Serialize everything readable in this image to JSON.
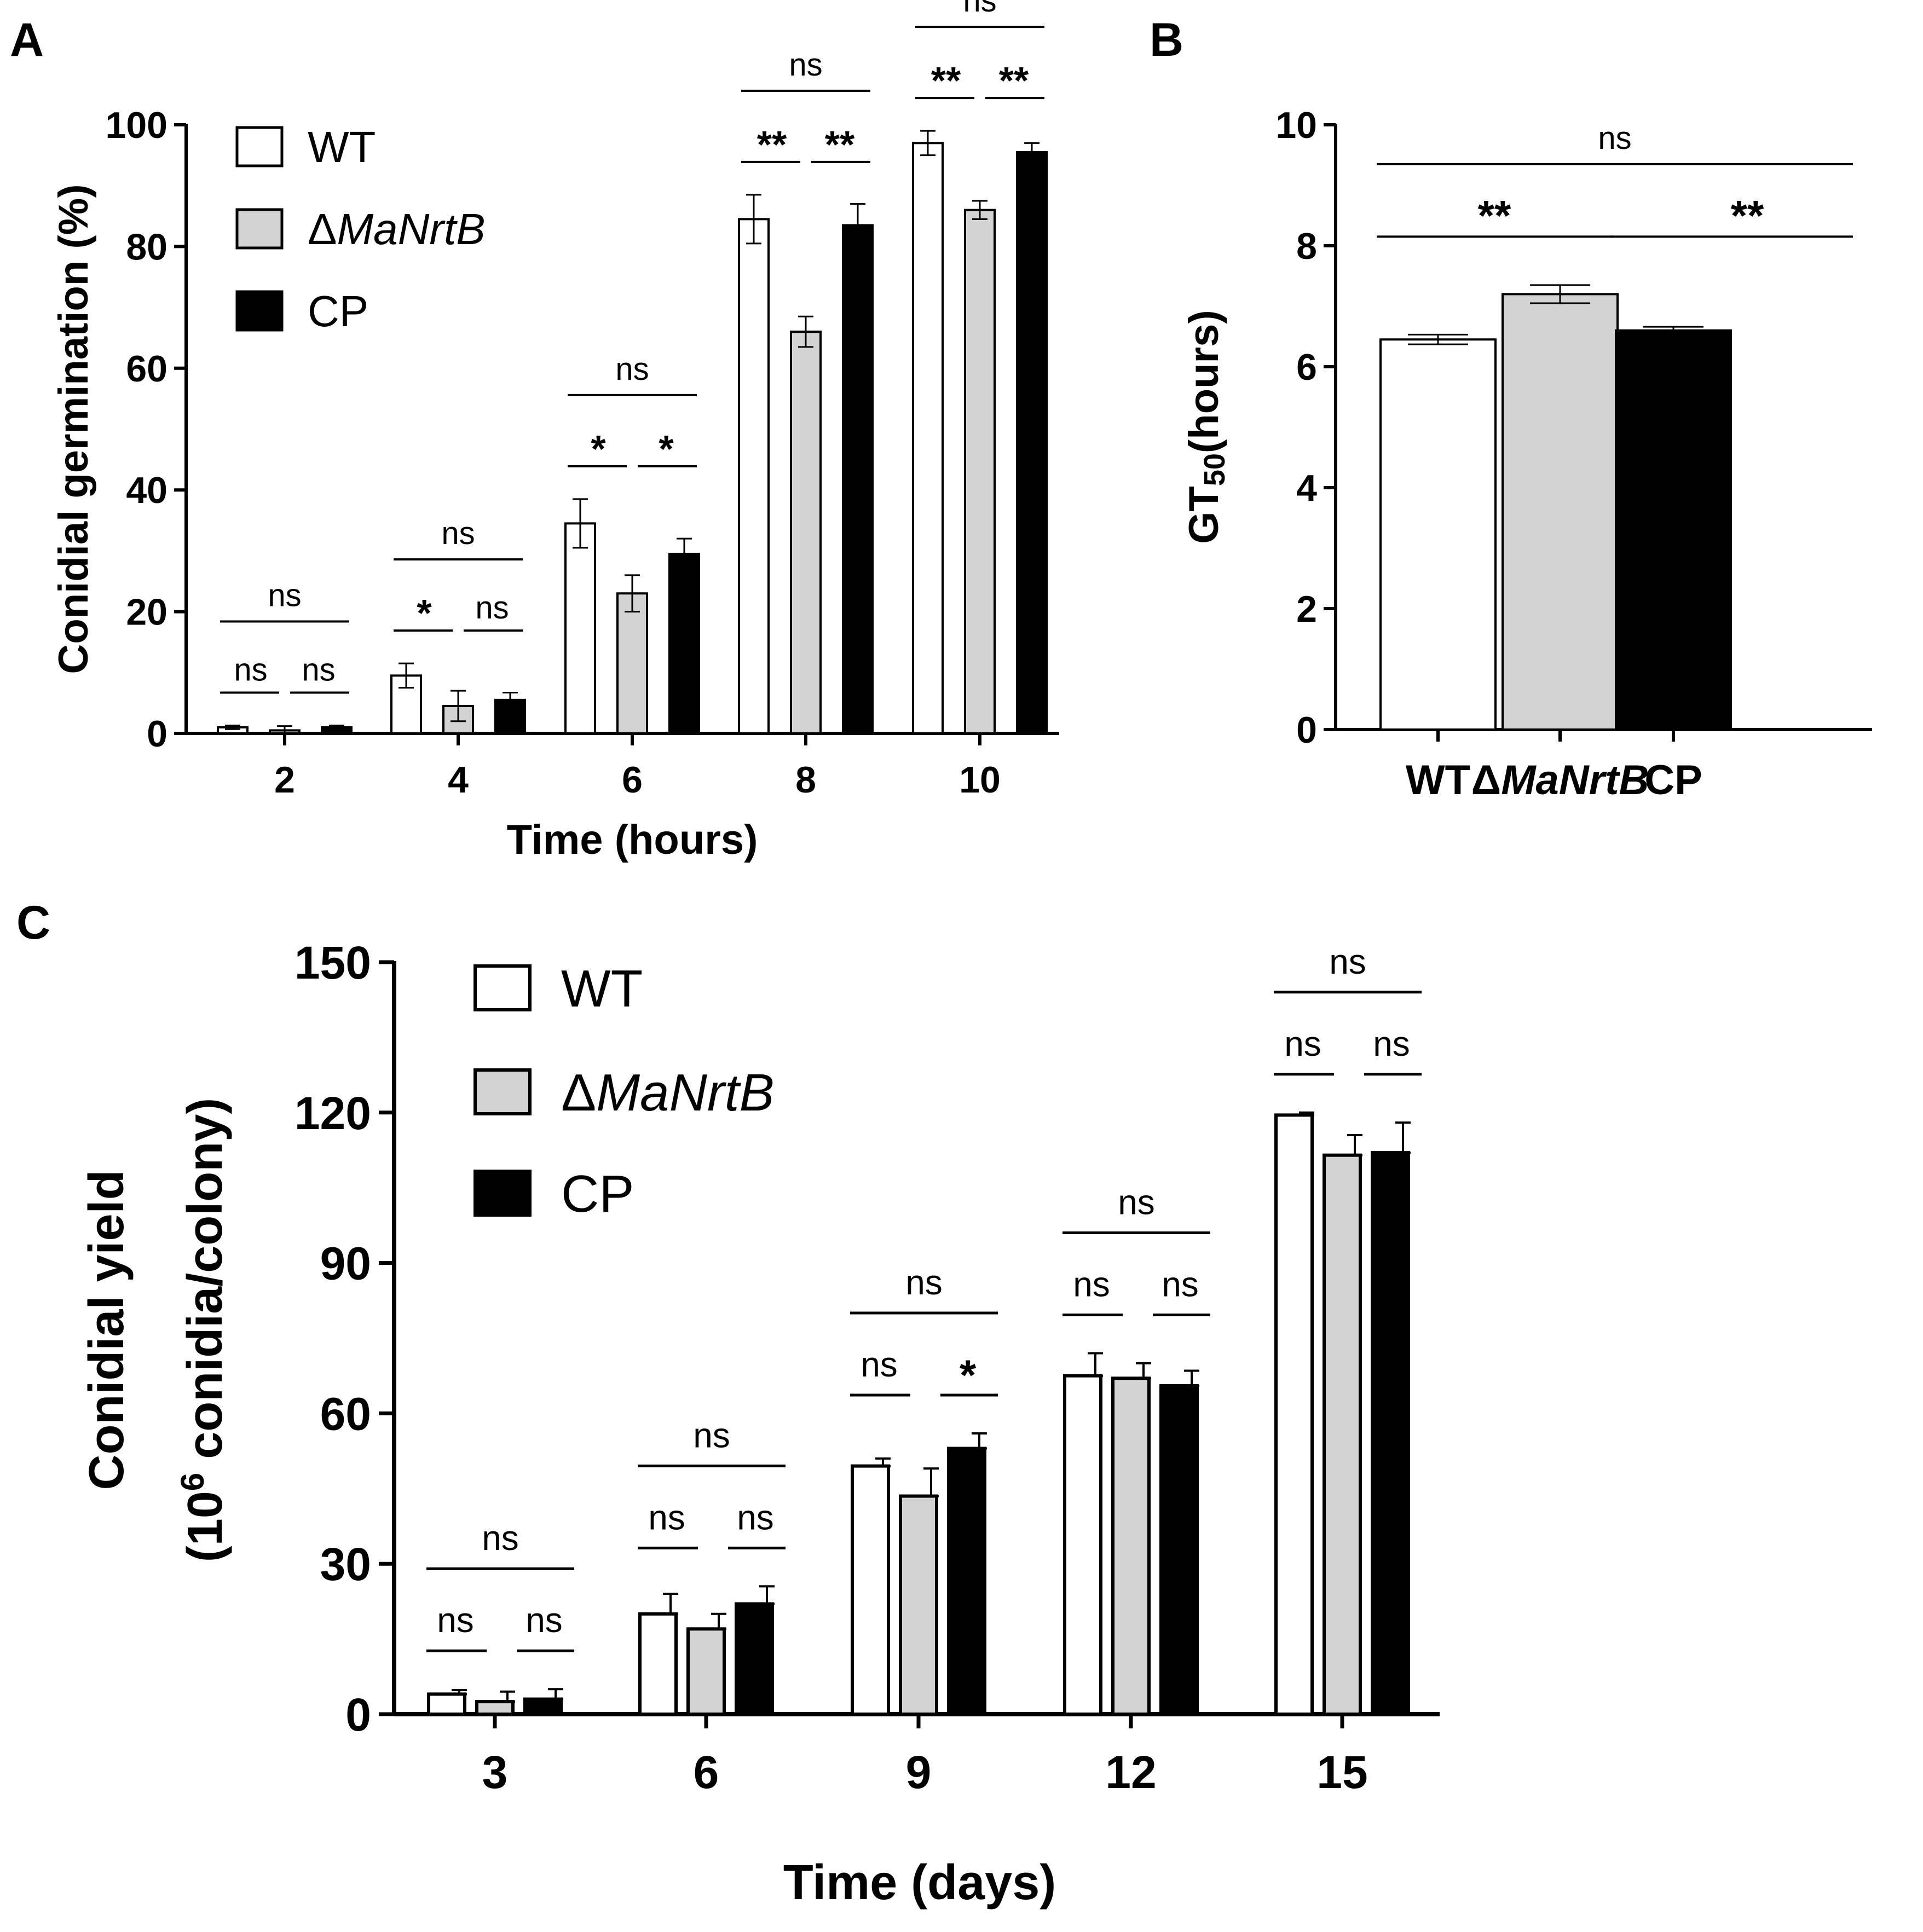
{
  "figure": {
    "panel_labels": [
      "A",
      "B",
      "C"
    ],
    "colors": {
      "WT": "#ffffff",
      "MaNrtB": "#d3d3d3",
      "CP": "#000000",
      "stroke": "#000000"
    }
  },
  "chart_data": [
    {
      "id": "A",
      "type": "bar",
      "title": "",
      "xlabel": "Time (hours)",
      "ylabel": "Conidial germination (%)",
      "ylim": [
        0,
        100
      ],
      "yticks": [
        "0",
        "20",
        "40",
        "60",
        "80",
        "100"
      ],
      "categories": [
        "2",
        "4",
        "6",
        "8",
        "10"
      ],
      "legend": {
        "position": "top-left",
        "entries": [
          {
            "name": "WT",
            "italic": ""
          },
          {
            "name": "Δ",
            "italic": "MaNrtB"
          },
          {
            "name": "CP",
            "italic": ""
          }
        ]
      },
      "series": [
        {
          "name": "WT",
          "values": [
            1,
            9.5,
            34.5,
            84.5,
            97
          ],
          "errors": [
            0.3,
            2,
            4,
            4,
            2
          ]
        },
        {
          "name": "ΔMaNrtB",
          "values": [
            0.5,
            4.5,
            23,
            66,
            86
          ],
          "errors": [
            0.7,
            2.5,
            3,
            2.5,
            1.5
          ]
        },
        {
          "name": "CP",
          "values": [
            1,
            5.5,
            29.5,
            83.5,
            95.5
          ],
          "errors": [
            0.3,
            1.2,
            2.5,
            3.5,
            1.5
          ]
        }
      ],
      "significance": [
        {
          "top": "ns",
          "left": "ns",
          "right": "ns"
        },
        {
          "top": "ns",
          "left": "*",
          "right": "ns"
        },
        {
          "top": "ns",
          "left": "*",
          "right": "*"
        },
        {
          "top": "ns",
          "left": "**",
          "right": "**"
        },
        {
          "top": "ns",
          "left": "**",
          "right": "**"
        }
      ]
    },
    {
      "id": "B",
      "type": "bar",
      "title": "",
      "xlabel": "",
      "ylabel_main": "GT",
      "ylabel_sub": "50",
      "ylabel_tail": "(hours)",
      "ylim": [
        0,
        10
      ],
      "yticks": [
        "0",
        "2",
        "4",
        "6",
        "8",
        "10"
      ],
      "categories": [
        {
          "prefix": "WT",
          "italic": ""
        },
        {
          "prefix": "Δ",
          "italic": "MaNrtB"
        },
        {
          "prefix": "CP",
          "italic": ""
        }
      ],
      "values": [
        6.45,
        7.2,
        6.6
      ],
      "errors": [
        0.08,
        0.15,
        0.06
      ],
      "significance": {
        "top": "ns",
        "left": "**",
        "right": "**"
      }
    },
    {
      "id": "C",
      "type": "bar",
      "title": "",
      "xlabel": "Time (days)",
      "ylabel_line1": "Conidial yield",
      "ylabel_line2_pre": "(10",
      "ylabel_line2_sup": "6",
      "ylabel_line2_post": " conidia/colony)",
      "ylim": [
        0,
        150
      ],
      "yticks": [
        "0",
        "30",
        "60",
        "90",
        "120",
        "150"
      ],
      "categories": [
        "3",
        "6",
        "9",
        "12",
        "15"
      ],
      "legend": {
        "position": "top-left",
        "entries": [
          {
            "name": "WT",
            "italic": ""
          },
          {
            "name": "Δ",
            "italic": "MaNrtB"
          },
          {
            "name": "CP",
            "italic": ""
          }
        ]
      },
      "series": [
        {
          "name": "WT",
          "values": [
            4,
            20,
            49.5,
            67.5,
            119.5
          ],
          "errors": [
            0.8,
            4,
            1.5,
            4.5,
            0.5
          ]
        },
        {
          "name": "ΔMaNrtB",
          "values": [
            2.5,
            17,
            43.5,
            67,
            111.5
          ],
          "errors": [
            2,
            3,
            5.5,
            3,
            4
          ]
        },
        {
          "name": "CP",
          "values": [
            3,
            22,
            53,
            65.5,
            112
          ],
          "errors": [
            2,
            3.5,
            3,
            3,
            6
          ]
        }
      ],
      "significance": [
        {
          "top": "ns",
          "left": "ns",
          "right": "ns"
        },
        {
          "top": "ns",
          "left": "ns",
          "right": "ns"
        },
        {
          "top": "ns",
          "left": "ns",
          "right": "*"
        },
        {
          "top": "ns",
          "left": "ns",
          "right": "ns"
        },
        {
          "top": "ns",
          "left": "ns",
          "right": "ns"
        }
      ]
    }
  ]
}
